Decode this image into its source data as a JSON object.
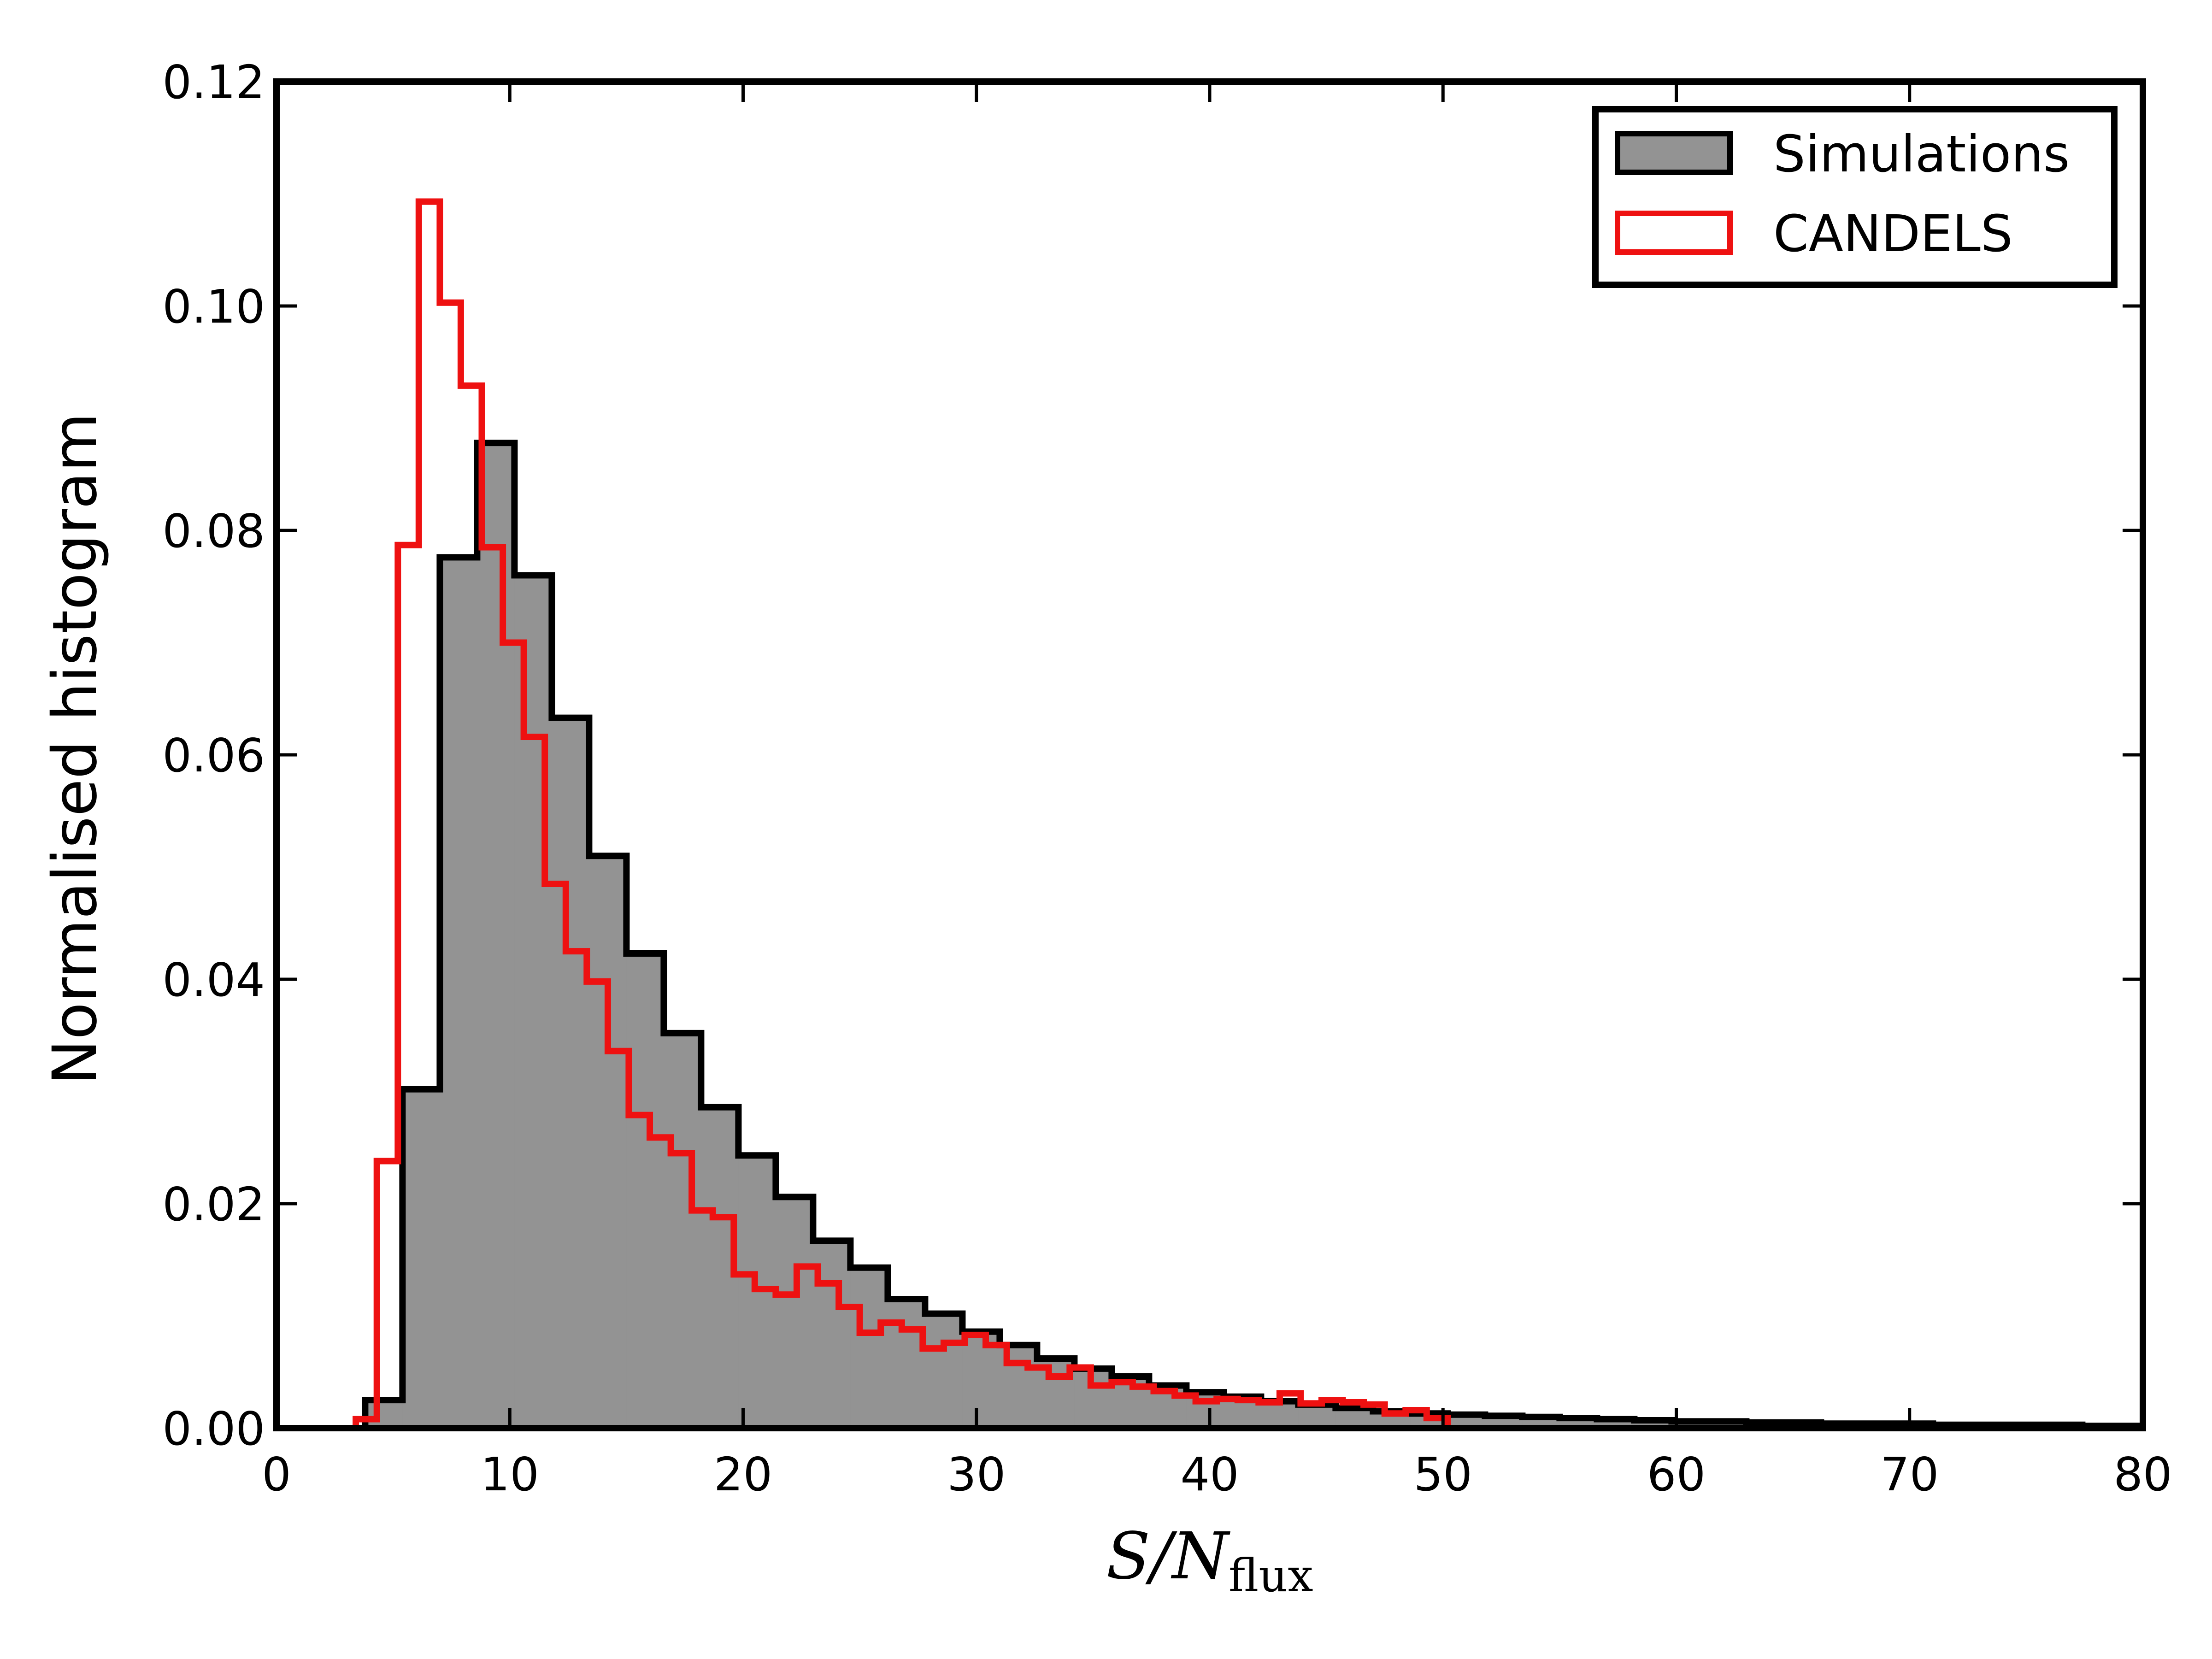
{
  "chart_data": {
    "type": "histogram",
    "xlabel": {
      "main": "S/N",
      "subscript": "flux"
    },
    "ylabel": "Normalised histogram",
    "xlim": [
      0,
      80
    ],
    "ylim": [
      0,
      0.12
    ],
    "xticks": [
      0,
      10,
      20,
      30,
      40,
      50,
      60,
      70,
      80
    ],
    "yticks": [
      0.0,
      0.02,
      0.04,
      0.06,
      0.08,
      0.1,
      0.12
    ],
    "xtick_labels": [
      "0",
      "10",
      "20",
      "30",
      "40",
      "50",
      "60",
      "70",
      "80"
    ],
    "ytick_labels": [
      "0.00",
      "0.02",
      "0.04",
      "0.06",
      "0.08",
      "0.10",
      "0.12"
    ],
    "legend_position": "top-right",
    "series": [
      {
        "name": "Simulations",
        "style": "filled",
        "fill_color": "#939393",
        "edge_color": "#000000",
        "bin_edges": [
          3.8,
          5.4,
          7.0,
          8.6,
          10.2,
          11.8,
          13.4,
          15.0,
          16.6,
          18.2,
          19.8,
          21.4,
          23.0,
          24.6,
          26.2,
          27.8,
          29.4,
          31.0,
          32.6,
          34.2,
          35.8,
          37.4,
          39.0,
          40.6,
          42.2,
          43.8,
          45.4,
          47.0,
          48.6,
          50.2,
          51.8,
          53.4,
          55.0,
          56.6,
          58.2,
          59.8,
          61.4,
          63.0,
          64.6,
          66.2,
          67.8,
          69.4,
          71.0,
          72.6,
          74.2,
          75.8,
          77.4,
          79.0,
          80.0
        ],
        "values": [
          0.0025,
          0.0302,
          0.0776,
          0.0878,
          0.076,
          0.0633,
          0.051,
          0.0423,
          0.0352,
          0.0286,
          0.0243,
          0.0206,
          0.0167,
          0.0143,
          0.0115,
          0.0102,
          0.0086,
          0.0074,
          0.0062,
          0.0053,
          0.0046,
          0.0038,
          0.0032,
          0.0028,
          0.0024,
          0.0021,
          0.0018,
          0.0015,
          0.0013,
          0.0012,
          0.0011,
          0.001,
          0.0009,
          0.0008,
          0.0007,
          0.0006,
          0.0006,
          0.0005,
          0.0005,
          0.0004,
          0.0004,
          0.0004,
          0.0003,
          0.0003,
          0.0003,
          0.0003,
          0.0002,
          0.0002
        ]
      },
      {
        "name": "CANDELS",
        "style": "step",
        "fill_color": "none",
        "edge_color": "#ee1111",
        "bin_edges": [
          3.4,
          4.3,
          5.2,
          6.1,
          7.0,
          7.9,
          8.8,
          9.7,
          10.6,
          11.5,
          12.4,
          13.3,
          14.2,
          15.1,
          16.0,
          16.9,
          17.8,
          18.7,
          19.6,
          20.5,
          21.4,
          22.3,
          23.2,
          24.1,
          25.0,
          25.9,
          26.8,
          27.7,
          28.6,
          29.5,
          30.4,
          31.3,
          32.2,
          33.1,
          34.0,
          34.9,
          35.8,
          36.7,
          37.6,
          38.5,
          39.4,
          40.3,
          41.2,
          42.1,
          43.0,
          43.9,
          44.8,
          45.7,
          46.6,
          47.5,
          48.4,
          49.3,
          50.2
        ],
        "values": [
          0.0008,
          0.0238,
          0.0787,
          0.1093,
          0.1003,
          0.0929,
          0.0785,
          0.07,
          0.0616,
          0.0485,
          0.0425,
          0.0398,
          0.0336,
          0.0279,
          0.0259,
          0.0245,
          0.0194,
          0.0188,
          0.0137,
          0.0124,
          0.0119,
          0.0144,
          0.0129,
          0.0108,
          0.0085,
          0.0094,
          0.0088,
          0.0071,
          0.0076,
          0.0083,
          0.0074,
          0.0058,
          0.0054,
          0.0046,
          0.0054,
          0.0038,
          0.0041,
          0.0037,
          0.0033,
          0.0029,
          0.0024,
          0.0026,
          0.0025,
          0.0023,
          0.0031,
          0.0022,
          0.0025,
          0.0023,
          0.0021,
          0.0013,
          0.0016,
          0.0009
        ]
      }
    ]
  }
}
